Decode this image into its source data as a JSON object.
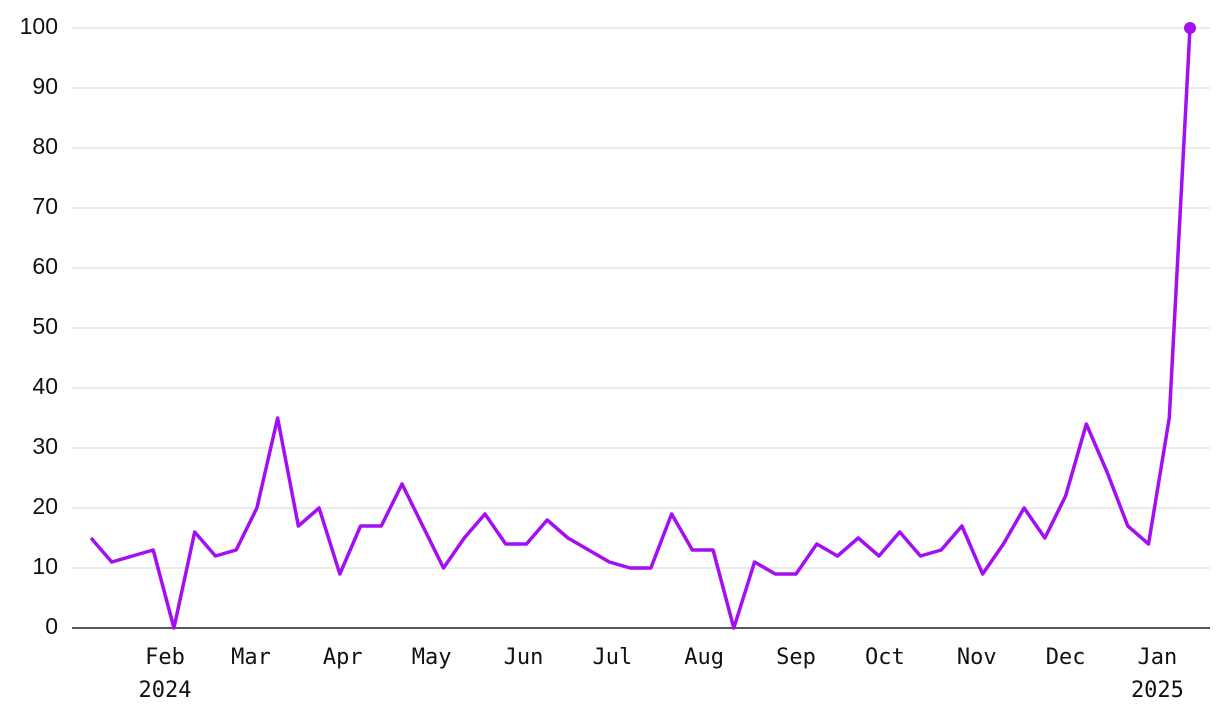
{
  "chart_data": {
    "type": "line",
    "values": [
      15,
      11,
      12,
      13,
      0,
      16,
      12,
      13,
      20,
      35,
      17,
      20,
      9,
      17,
      17,
      24,
      17,
      10,
      15,
      19,
      14,
      14,
      18,
      15,
      13,
      11,
      10,
      10,
      19,
      13,
      13,
      0,
      11,
      9,
      9,
      14,
      12,
      15,
      12,
      16,
      12,
      13,
      17,
      9,
      14,
      20,
      15,
      22,
      34,
      26,
      17,
      14,
      35,
      100
    ],
    "color": "#a30ff2",
    "ylim": [
      0,
      100
    ],
    "yticks": [
      0,
      10,
      20,
      30,
      40,
      50,
      60,
      70,
      80,
      90,
      100
    ],
    "grid": true,
    "xticks": [
      {
        "value": 3.571,
        "label": "Feb"
      },
      {
        "value": 7.714,
        "label": "Mar"
      },
      {
        "value": 12.143,
        "label": "Apr"
      },
      {
        "value": 16.429,
        "label": "May"
      },
      {
        "value": 20.857,
        "label": "Jun"
      },
      {
        "value": 25.143,
        "label": "Jul"
      },
      {
        "value": 29.571,
        "label": "Aug"
      },
      {
        "value": 34.0,
        "label": "Sep"
      },
      {
        "value": 38.286,
        "label": "Oct"
      },
      {
        "value": 42.714,
        "label": "Nov"
      },
      {
        "value": 47.0,
        "label": "Dec"
      },
      {
        "value": 51.429,
        "label": "Jan"
      }
    ],
    "xtick_years": [
      {
        "value": 3.571,
        "label": "2024"
      },
      {
        "value": 51.429,
        "label": "2025"
      }
    ],
    "end_marker": true
  }
}
